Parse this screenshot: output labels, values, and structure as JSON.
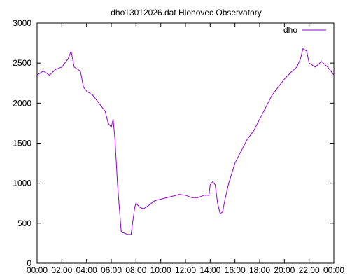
{
  "chart_data": {
    "type": "line",
    "title": "dho13012026.dat Hlohovec Observatory",
    "xlabel": "",
    "ylabel": "",
    "xlim": [
      0,
      24
    ],
    "ylim": [
      0,
      3000
    ],
    "grid": false,
    "legend_placement": "top-right",
    "x_ticks": [
      0,
      2,
      4,
      6,
      8,
      10,
      12,
      14,
      16,
      18,
      20,
      22,
      24
    ],
    "x_tick_labels": [
      "00:00",
      "02:00",
      "04:00",
      "06:00",
      "08:00",
      "10:00",
      "12:00",
      "14:00",
      "16:00",
      "18:00",
      "20:00",
      "22:00",
      "00:00"
    ],
    "y_ticks": [
      0,
      500,
      1000,
      1500,
      2000,
      2500,
      3000
    ],
    "y_tick_labels": [
      "0",
      "500",
      "1000",
      "1500",
      "2000",
      "2500",
      "3000"
    ],
    "series": [
      {
        "name": "dho",
        "color": "#9400d3",
        "x": [
          0,
          0.5,
          1.0,
          1.5,
          2.0,
          2.5,
          2.75,
          3.0,
          3.5,
          3.75,
          4.0,
          4.5,
          5.0,
          5.5,
          5.75,
          6.0,
          6.15,
          6.3,
          6.5,
          6.7,
          6.8,
          6.9,
          7.0,
          7.3,
          7.6,
          7.9,
          8.0,
          8.3,
          8.6,
          9.0,
          9.5,
          10.0,
          10.5,
          11.0,
          11.5,
          12.0,
          12.5,
          13.0,
          13.5,
          13.9,
          14.0,
          14.2,
          14.4,
          14.6,
          14.8,
          15.0,
          15.2,
          15.5,
          15.8,
          16.0,
          16.5,
          17.0,
          17.5,
          18.0,
          18.5,
          19.0,
          19.5,
          20.0,
          20.5,
          21.0,
          21.3,
          21.5,
          21.8,
          22.0,
          22.5,
          23.0,
          23.5,
          24.0
        ],
        "values": [
          2350,
          2400,
          2350,
          2420,
          2450,
          2550,
          2650,
          2450,
          2400,
          2200,
          2150,
          2100,
          2000,
          1900,
          1750,
          1700,
          1800,
          1550,
          1000,
          600,
          400,
          380,
          380,
          360,
          360,
          700,
          750,
          700,
          680,
          720,
          780,
          800,
          820,
          840,
          860,
          850,
          820,
          820,
          850,
          850,
          980,
          1020,
          980,
          750,
          620,
          640,
          800,
          1000,
          1150,
          1250,
          1400,
          1550,
          1650,
          1800,
          1950,
          2100,
          2200,
          2300,
          2380,
          2450,
          2550,
          2680,
          2650,
          2500,
          2450,
          2520,
          2450,
          2350
        ]
      }
    ]
  }
}
